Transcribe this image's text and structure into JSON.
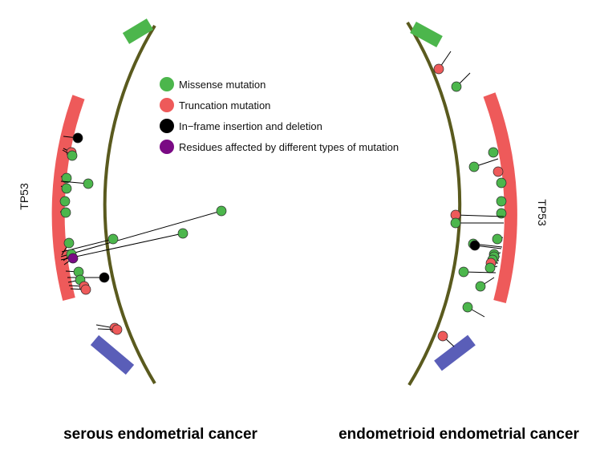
{
  "colors": {
    "backbone": "#5a5a1e",
    "missense": "#4cb64c",
    "truncation": "#ee5a5a",
    "inframe": "#000000",
    "multi": "#7a0a84",
    "tp53_domain": "#ee5a5a",
    "domain_green": "#4cb64c",
    "domain_blue": "#5a5eb8"
  },
  "legend": [
    {
      "type": "missense",
      "label": "Missense mutation"
    },
    {
      "type": "truncation",
      "label": "Truncation mutation"
    },
    {
      "type": "inframe",
      "label": "In−frame insertion and deletion"
    },
    {
      "type": "multi",
      "label": "Residues affected by different types of mutation"
    }
  ],
  "panels": [
    {
      "title": "serous endometrial cancer",
      "gene_label": "TP53",
      "domains": [
        {
          "name": "green-domain",
          "color": "domain_green"
        },
        {
          "name": "tp53-domain",
          "color": "tp53_domain"
        },
        {
          "name": "blue-domain",
          "color": "domain_blue"
        }
      ],
      "mutations": [
        {
          "type": "inframe"
        },
        {
          "type": "truncation"
        },
        {
          "type": "missense"
        },
        {
          "type": "missense"
        },
        {
          "type": "missense"
        },
        {
          "type": "missense"
        },
        {
          "type": "missense"
        },
        {
          "type": "missense"
        },
        {
          "type": "missense"
        },
        {
          "type": "missense"
        },
        {
          "type": "missense"
        },
        {
          "type": "missense"
        },
        {
          "type": "missense"
        },
        {
          "type": "multi"
        },
        {
          "type": "missense"
        },
        {
          "type": "inframe"
        },
        {
          "type": "missense"
        },
        {
          "type": "truncation"
        },
        {
          "type": "truncation"
        }
      ]
    },
    {
      "title": "endometrioid endometrial cancer",
      "gene_label": "TP53",
      "domains": [
        {
          "name": "green-domain",
          "color": "domain_green"
        },
        {
          "name": "tp53-domain",
          "color": "tp53_domain"
        },
        {
          "name": "blue-domain",
          "color": "domain_blue"
        }
      ],
      "mutations": [
        {
          "type": "truncation"
        },
        {
          "type": "missense"
        },
        {
          "type": "missense"
        },
        {
          "type": "missense"
        },
        {
          "type": "truncation"
        },
        {
          "type": "missense"
        },
        {
          "type": "missense"
        },
        {
          "type": "missense"
        },
        {
          "type": "truncation"
        },
        {
          "type": "missense"
        },
        {
          "type": "missense"
        },
        {
          "type": "missense"
        },
        {
          "type": "inframe"
        },
        {
          "type": "missense"
        },
        {
          "type": "missense"
        },
        {
          "type": "missense"
        },
        {
          "type": "truncation"
        },
        {
          "type": "missense"
        },
        {
          "type": "missense"
        },
        {
          "type": "missense"
        },
        {
          "type": "missense"
        },
        {
          "type": "truncation"
        },
        {
          "type": "truncation"
        }
      ]
    }
  ]
}
